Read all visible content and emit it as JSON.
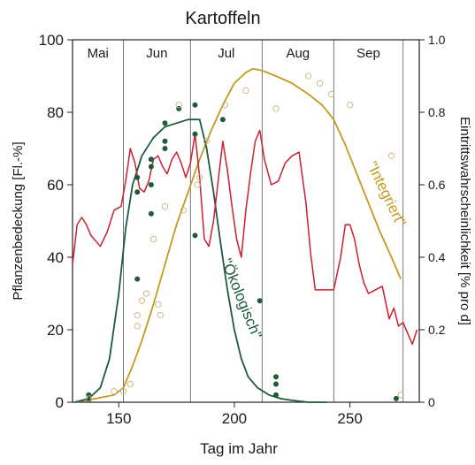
{
  "chart_data": {
    "type": "line",
    "title": "Kartoffeln",
    "xlabel": "Tag im Jahr",
    "ylabel_left": "Pflanzenbedeckung [Fl.-%]",
    "ylabel_right": "Eintrittswahrscheinlichkeit  [% pro d]",
    "xlim": [
      130,
      280
    ],
    "ylim_left": [
      0,
      100
    ],
    "ylim_right": [
      0,
      1.0
    ],
    "x_ticks": [
      150,
      200,
      250
    ],
    "y_ticks_left": [
      0,
      20,
      40,
      60,
      80,
      100
    ],
    "y_ticks_right": [
      0,
      0.2,
      0.4,
      0.6,
      0.8,
      1.0
    ],
    "y_tick_labels_right": [
      "0",
      "0.2",
      "0.4",
      "0.6",
      "0.8",
      "1.0"
    ],
    "months": [
      {
        "label": "Mai",
        "start": 130,
        "end": 152
      },
      {
        "label": "Jun",
        "start": 152,
        "end": 181
      },
      {
        "label": "Jul",
        "start": 181,
        "end": 212
      },
      {
        "label": "Aug",
        "start": 212,
        "end": 243
      },
      {
        "label": "Sep",
        "start": 243,
        "end": 273
      }
    ],
    "grid": false,
    "series": [
      {
        "name": "\"Integriert\"",
        "axis": "left",
        "color": "#c39a1f",
        "x": [
          131,
          140,
          148,
          152,
          156,
          160,
          165,
          170,
          175,
          180,
          185,
          190,
          195,
          200,
          205,
          208,
          212,
          218,
          225,
          232,
          238,
          243,
          248,
          253,
          258,
          263,
          268,
          272
        ],
        "y": [
          0,
          1,
          2,
          4,
          10,
          17,
          27,
          38,
          49,
          58,
          67,
          75,
          82,
          88,
          91,
          92,
          91.5,
          90,
          88,
          85,
          82,
          78,
          71,
          63,
          55,
          47,
          40,
          34
        ]
      },
      {
        "name": "\"Ökologisch\"",
        "axis": "left",
        "color": "#1f5a3a",
        "x": [
          131,
          137,
          142,
          146,
          150,
          153,
          156,
          160,
          165,
          170,
          175,
          180,
          185,
          188,
          191,
          194,
          197,
          200,
          203,
          206,
          210,
          215,
          220,
          225,
          232,
          240
        ],
        "y": [
          0,
          1,
          4,
          12,
          30,
          48,
          60,
          68,
          73,
          76,
          77,
          78,
          78,
          70,
          58,
          44,
          31,
          20,
          12,
          7,
          4,
          2,
          1,
          0.5,
          0,
          0
        ]
      },
      {
        "name": "Eintrittswahrscheinlichkeit",
        "axis": "right",
        "color": "#cc1f2f",
        "x": [
          130,
          132,
          134,
          136,
          138,
          142,
          145,
          148,
          151,
          153,
          155,
          157,
          159,
          161,
          163,
          165,
          167,
          169,
          171,
          173,
          175,
          177,
          179,
          181,
          183,
          185,
          187,
          189,
          191,
          193,
          195,
          197,
          199,
          201,
          203,
          205,
          207,
          209,
          211,
          213,
          216,
          219,
          222,
          225,
          228,
          231,
          233,
          235,
          237,
          240,
          243,
          246,
          248,
          250,
          252,
          254,
          256,
          258,
          261,
          264,
          267,
          269,
          271,
          273,
          275,
          277,
          279
        ],
        "y": [
          0.38,
          0.49,
          0.51,
          0.49,
          0.46,
          0.43,
          0.47,
          0.53,
          0.54,
          0.61,
          0.7,
          0.66,
          0.59,
          0.58,
          0.61,
          0.67,
          0.68,
          0.65,
          0.63,
          0.67,
          0.69,
          0.66,
          0.62,
          0.66,
          0.74,
          0.62,
          0.45,
          0.43,
          0.5,
          0.61,
          0.72,
          0.64,
          0.54,
          0.45,
          0.4,
          0.53,
          0.63,
          0.72,
          0.75,
          0.67,
          0.6,
          0.61,
          0.66,
          0.68,
          0.69,
          0.55,
          0.41,
          0.31,
          0.31,
          0.31,
          0.31,
          0.4,
          0.49,
          0.49,
          0.45,
          0.38,
          0.33,
          0.3,
          0.31,
          0.32,
          0.23,
          0.26,
          0.21,
          0.22,
          0.19,
          0.16,
          0.2
        ]
      }
    ],
    "scatter_points": [
      {
        "name": "Ökologisch Messwerte",
        "filled": true,
        "color": "#1f5a3a",
        "points": [
          [
            137,
            0.5
          ],
          [
            137,
            2
          ],
          [
            158,
            62
          ],
          [
            158,
            58
          ],
          [
            158,
            34
          ],
          [
            164,
            65
          ],
          [
            164,
            67
          ],
          [
            164,
            60
          ],
          [
            164,
            52
          ],
          [
            170,
            77
          ],
          [
            170,
            70
          ],
          [
            170,
            72
          ],
          [
            176,
            81
          ],
          [
            183,
            82
          ],
          [
            183,
            74
          ],
          [
            183,
            46
          ],
          [
            195,
            78
          ],
          [
            211,
            28
          ],
          [
            218,
            7
          ],
          [
            218,
            2
          ],
          [
            218,
            5
          ],
          [
            270,
            1
          ]
        ]
      },
      {
        "name": "Integriert Messwerte",
        "filled": false,
        "color": "#c9b27a",
        "points": [
          [
            137,
            1
          ],
          [
            148,
            3
          ],
          [
            152,
            3
          ],
          [
            155,
            5
          ],
          [
            158,
            21
          ],
          [
            158,
            24
          ],
          [
            160,
            28
          ],
          [
            162,
            30
          ],
          [
            165,
            45
          ],
          [
            167,
            27
          ],
          [
            168,
            24
          ],
          [
            170,
            54
          ],
          [
            176,
            82
          ],
          [
            178,
            53
          ],
          [
            184,
            60
          ],
          [
            185,
            62
          ],
          [
            188,
            72
          ],
          [
            196,
            82
          ],
          [
            205,
            86
          ],
          [
            218,
            81
          ],
          [
            232,
            90
          ],
          [
            237,
            88
          ],
          [
            242,
            85
          ],
          [
            250,
            82
          ],
          [
            268,
            68
          ],
          [
            272,
            2
          ]
        ]
      }
    ],
    "annotations": [
      {
        "text": "\"Integriert\"",
        "color": "#c39a1f"
      },
      {
        "text": "\"Ökologisch\"",
        "color": "#1f5a3a"
      }
    ]
  }
}
